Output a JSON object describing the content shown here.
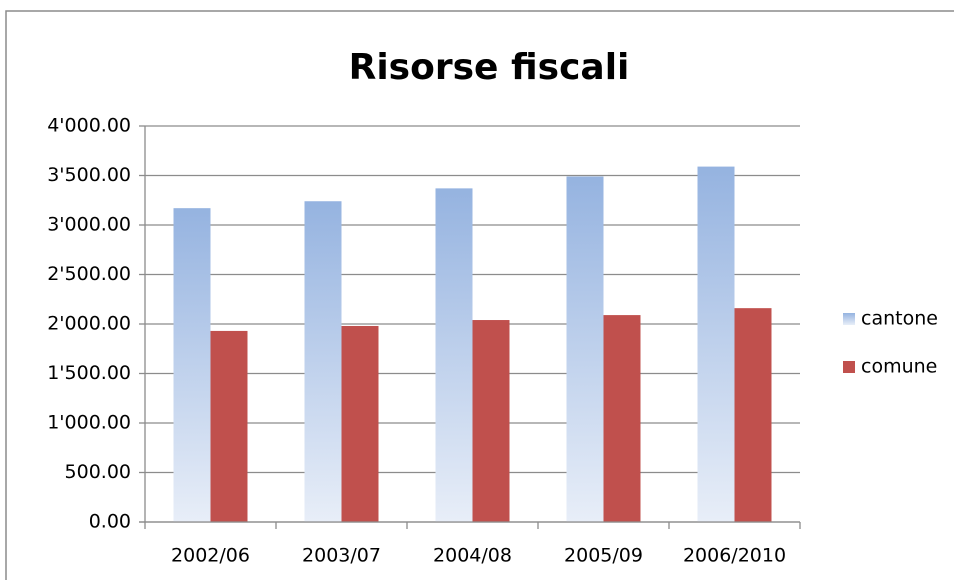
{
  "chart_data": {
    "type": "bar",
    "title": "Risorse fiscali",
    "categories": [
      "2002/06",
      "2003/07",
      "2004/08",
      "2005/09",
      "2006/2010"
    ],
    "series": [
      {
        "name": "cantone",
        "color": "#95b3e0",
        "values": [
          3170,
          3240,
          3370,
          3490,
          3590
        ]
      },
      {
        "name": "comune",
        "color": "#c0504d",
        "values": [
          1930,
          1980,
          2040,
          2090,
          2160
        ]
      }
    ],
    "ylim": [
      0,
      4000
    ],
    "yticks": [
      {
        "value": 0,
        "label": "0.00"
      },
      {
        "value": 500,
        "label": "500.00"
      },
      {
        "value": 1000,
        "label": "1'000.00"
      },
      {
        "value": 1500,
        "label": "1'500.00"
      },
      {
        "value": 2000,
        "label": "2'000.00"
      },
      {
        "value": 2500,
        "label": "2'500.00"
      },
      {
        "value": 3000,
        "label": "3'000.00"
      },
      {
        "value": 3500,
        "label": "3'500.00"
      },
      {
        "value": 4000,
        "label": "4'000.00"
      }
    ],
    "grid": true,
    "legend": "right"
  }
}
